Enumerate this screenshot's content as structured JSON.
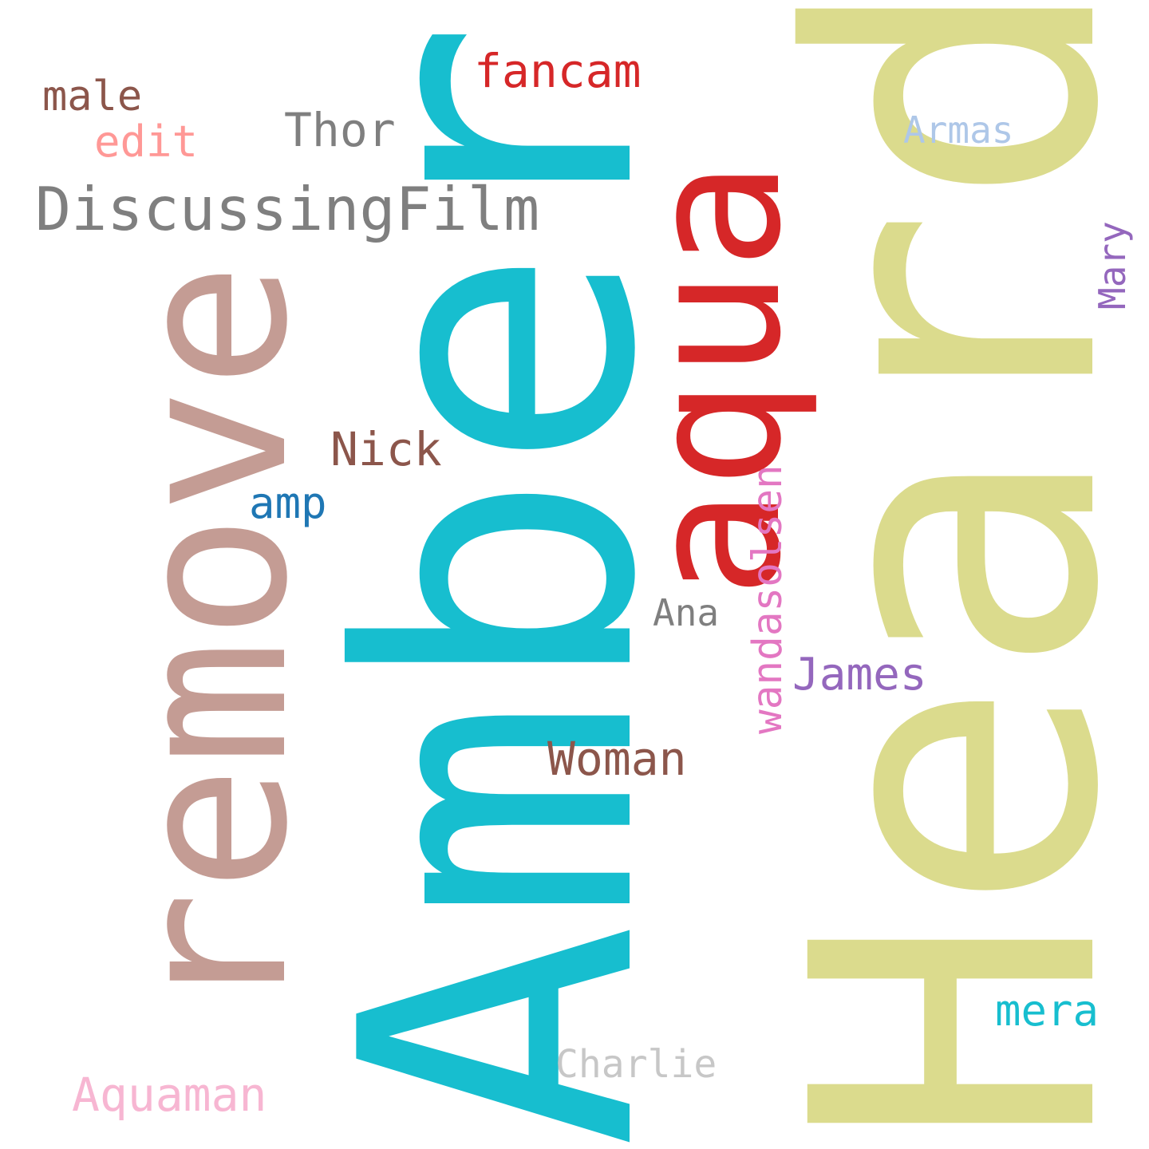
{
  "words": {
    "amber": {
      "text": "Amber",
      "color": "#17becf"
    },
    "heard": {
      "text": "Heard",
      "color": "#dbdb8d"
    },
    "remove": {
      "text": "remove",
      "color": "#c49c94"
    },
    "aqua": {
      "text": "aqua",
      "color": "#d62728"
    },
    "discussing": {
      "text": "DiscussingFilm",
      "color": "#7f7f7f"
    },
    "fancam": {
      "text": "fancam",
      "color": "#d62728"
    },
    "male": {
      "text": "male",
      "color": "#8c564b"
    },
    "edit": {
      "text": "edit",
      "color": "#ff9896"
    },
    "thor": {
      "text": "Thor",
      "color": "#7f7f7f"
    },
    "armas": {
      "text": "Armas",
      "color": "#aec7e8"
    },
    "mary": {
      "text": "Mary",
      "color": "#9467bd"
    },
    "nick": {
      "text": "Nick",
      "color": "#8c564b"
    },
    "amp": {
      "text": "amp",
      "color": "#1f77b4"
    },
    "ana": {
      "text": "Ana",
      "color": "#7f7f7f"
    },
    "wandasolsen": {
      "text": "wandasolsen",
      "color": "#e377c2"
    },
    "james": {
      "text": "James",
      "color": "#9467bd"
    },
    "woman": {
      "text": "Woman",
      "color": "#8c564b"
    },
    "mera": {
      "text": "mera",
      "color": "#17becf"
    },
    "charlie": {
      "text": "Charlie",
      "color": "#c7c7c7"
    },
    "aquaman": {
      "text": "Aquaman",
      "color": "#f7b6d2"
    }
  }
}
